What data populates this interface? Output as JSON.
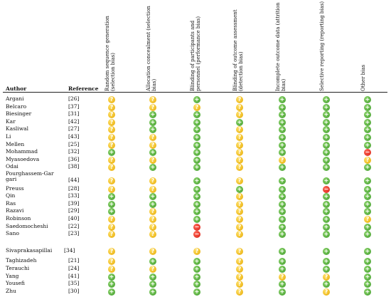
{
  "headers": {
    "author": "Author",
    "reference": "Reference",
    "domains": [
      "Random sequence generation (selection bias)",
      "Allocation concealment (selection bias)",
      "Blinding of participants and personnel (performance bias)",
      "Blinding of outcome assessment (detection bias)",
      "Incomplete outcome data (attrition bias)",
      "Selective reporting (reporting bias)",
      "Other bias"
    ]
  },
  "symbols": {
    "low": "+",
    "unclear": "?",
    "high": "−"
  },
  "colors": {
    "low": "#4caf32",
    "unclear": "#f2b705",
    "high": "#e0201a"
  },
  "studies": [
    {
      "author": "Argani",
      "ref": "[26]",
      "r": [
        "unclear",
        "unclear",
        "low",
        "unclear",
        "low",
        "low",
        "low"
      ]
    },
    {
      "author": "Belcaro",
      "ref": "[37]",
      "r": [
        "unclear",
        "unclear",
        "unclear",
        "unclear",
        "low",
        "low",
        "low"
      ]
    },
    {
      "author": "Biesinger",
      "ref": "[31]",
      "r": [
        "unclear",
        "low",
        "low",
        "unclear",
        "low",
        "low",
        "low"
      ]
    },
    {
      "author": "Kar",
      "ref": "[42]",
      "r": [
        "unclear",
        "low",
        "low",
        "low",
        "low",
        "low",
        "low"
      ]
    },
    {
      "author": "Kasliwal",
      "ref": "[27]",
      "r": [
        "unclear",
        "low",
        "low",
        "unclear",
        "low",
        "low",
        "low"
      ]
    },
    {
      "author": "Li",
      "ref": "[43]",
      "r": [
        "unclear",
        "unclear",
        "low",
        "unclear",
        "low",
        "low",
        "low"
      ]
    },
    {
      "author": "Mellen",
      "ref": "[25]",
      "r": [
        "unclear",
        "unclear",
        "low",
        "unclear",
        "low",
        "low",
        "low"
      ]
    },
    {
      "author": "Mohammad",
      "ref": "[32]",
      "r": [
        "low",
        "low",
        "low",
        "unclear",
        "low",
        "low",
        "high"
      ]
    },
    {
      "author": "Myasoedova",
      "ref": "[36]",
      "r": [
        "unclear",
        "unclear",
        "low",
        "unclear",
        "unclear",
        "low",
        "unclear"
      ]
    },
    {
      "author": "Odai",
      "ref": "[38]",
      "r": [
        "unclear",
        "low",
        "low",
        "unclear",
        "low",
        "low",
        "low"
      ]
    },
    {
      "author": "Pourghassem-Gargari",
      "ref": "[44]",
      "r": [
        "unclear",
        "unclear",
        "low",
        "unclear",
        "low",
        "low",
        "low"
      ]
    },
    {
      "author": "Preuss",
      "ref": "[28]",
      "r": [
        "unclear",
        "unclear",
        "low",
        "low",
        "low",
        "high",
        "low"
      ]
    },
    {
      "author": "Qin",
      "ref": "[33]",
      "r": [
        "low",
        "low",
        "low",
        "unclear",
        "low",
        "low",
        "low"
      ]
    },
    {
      "author": "Ras",
      "ref": "[39]",
      "r": [
        "low",
        "low",
        "low",
        "unclear",
        "low",
        "low",
        "low"
      ]
    },
    {
      "author": "Razavi",
      "ref": "[29]",
      "r": [
        "low",
        "unclear",
        "low",
        "unclear",
        "low",
        "low",
        "low"
      ]
    },
    {
      "author": "Robinson",
      "ref": "[40]",
      "r": [
        "unclear",
        "unclear",
        "low",
        "unclear",
        "low",
        "low",
        "unclear"
      ]
    },
    {
      "author": "Saedomocheshi",
      "ref": "[22]",
      "r": [
        "unclear",
        "unclear",
        "high",
        "unclear",
        "low",
        "low",
        "low"
      ]
    },
    {
      "author": "Sano",
      "ref": "[23]",
      "r": [
        "unclear",
        "unclear",
        "high",
        "unclear",
        "low",
        "low",
        "low"
      ]
    },
    {
      "author": "Sivaprakasapillai",
      "ref": "[34]",
      "r": [
        "unclear",
        "unclear",
        "unclear",
        "unclear",
        "low",
        "low",
        "low"
      ]
    },
    {
      "author": "Taghizadeh",
      "ref": "[21]",
      "r": [
        "unclear",
        "low",
        "low",
        "unclear",
        "low",
        "low",
        "low"
      ]
    },
    {
      "author": "Terauchi",
      "ref": "[24]",
      "r": [
        "unclear",
        "unclear",
        "low",
        "unclear",
        "low",
        "low",
        "low"
      ]
    },
    {
      "author": "Yang",
      "ref": "[41]",
      "r": [
        "low",
        "low",
        "low",
        "unclear",
        "unclear",
        "unclear",
        "low"
      ]
    },
    {
      "author": "Yousefi",
      "ref": "[35]",
      "r": [
        "low",
        "low",
        "low",
        "unclear",
        "low",
        "low",
        "low"
      ]
    },
    {
      "author": "Zhu",
      "ref": "[30]",
      "r": [
        "low",
        "low",
        "low",
        "unclear",
        "low",
        "unclear",
        "low"
      ]
    }
  ]
}
